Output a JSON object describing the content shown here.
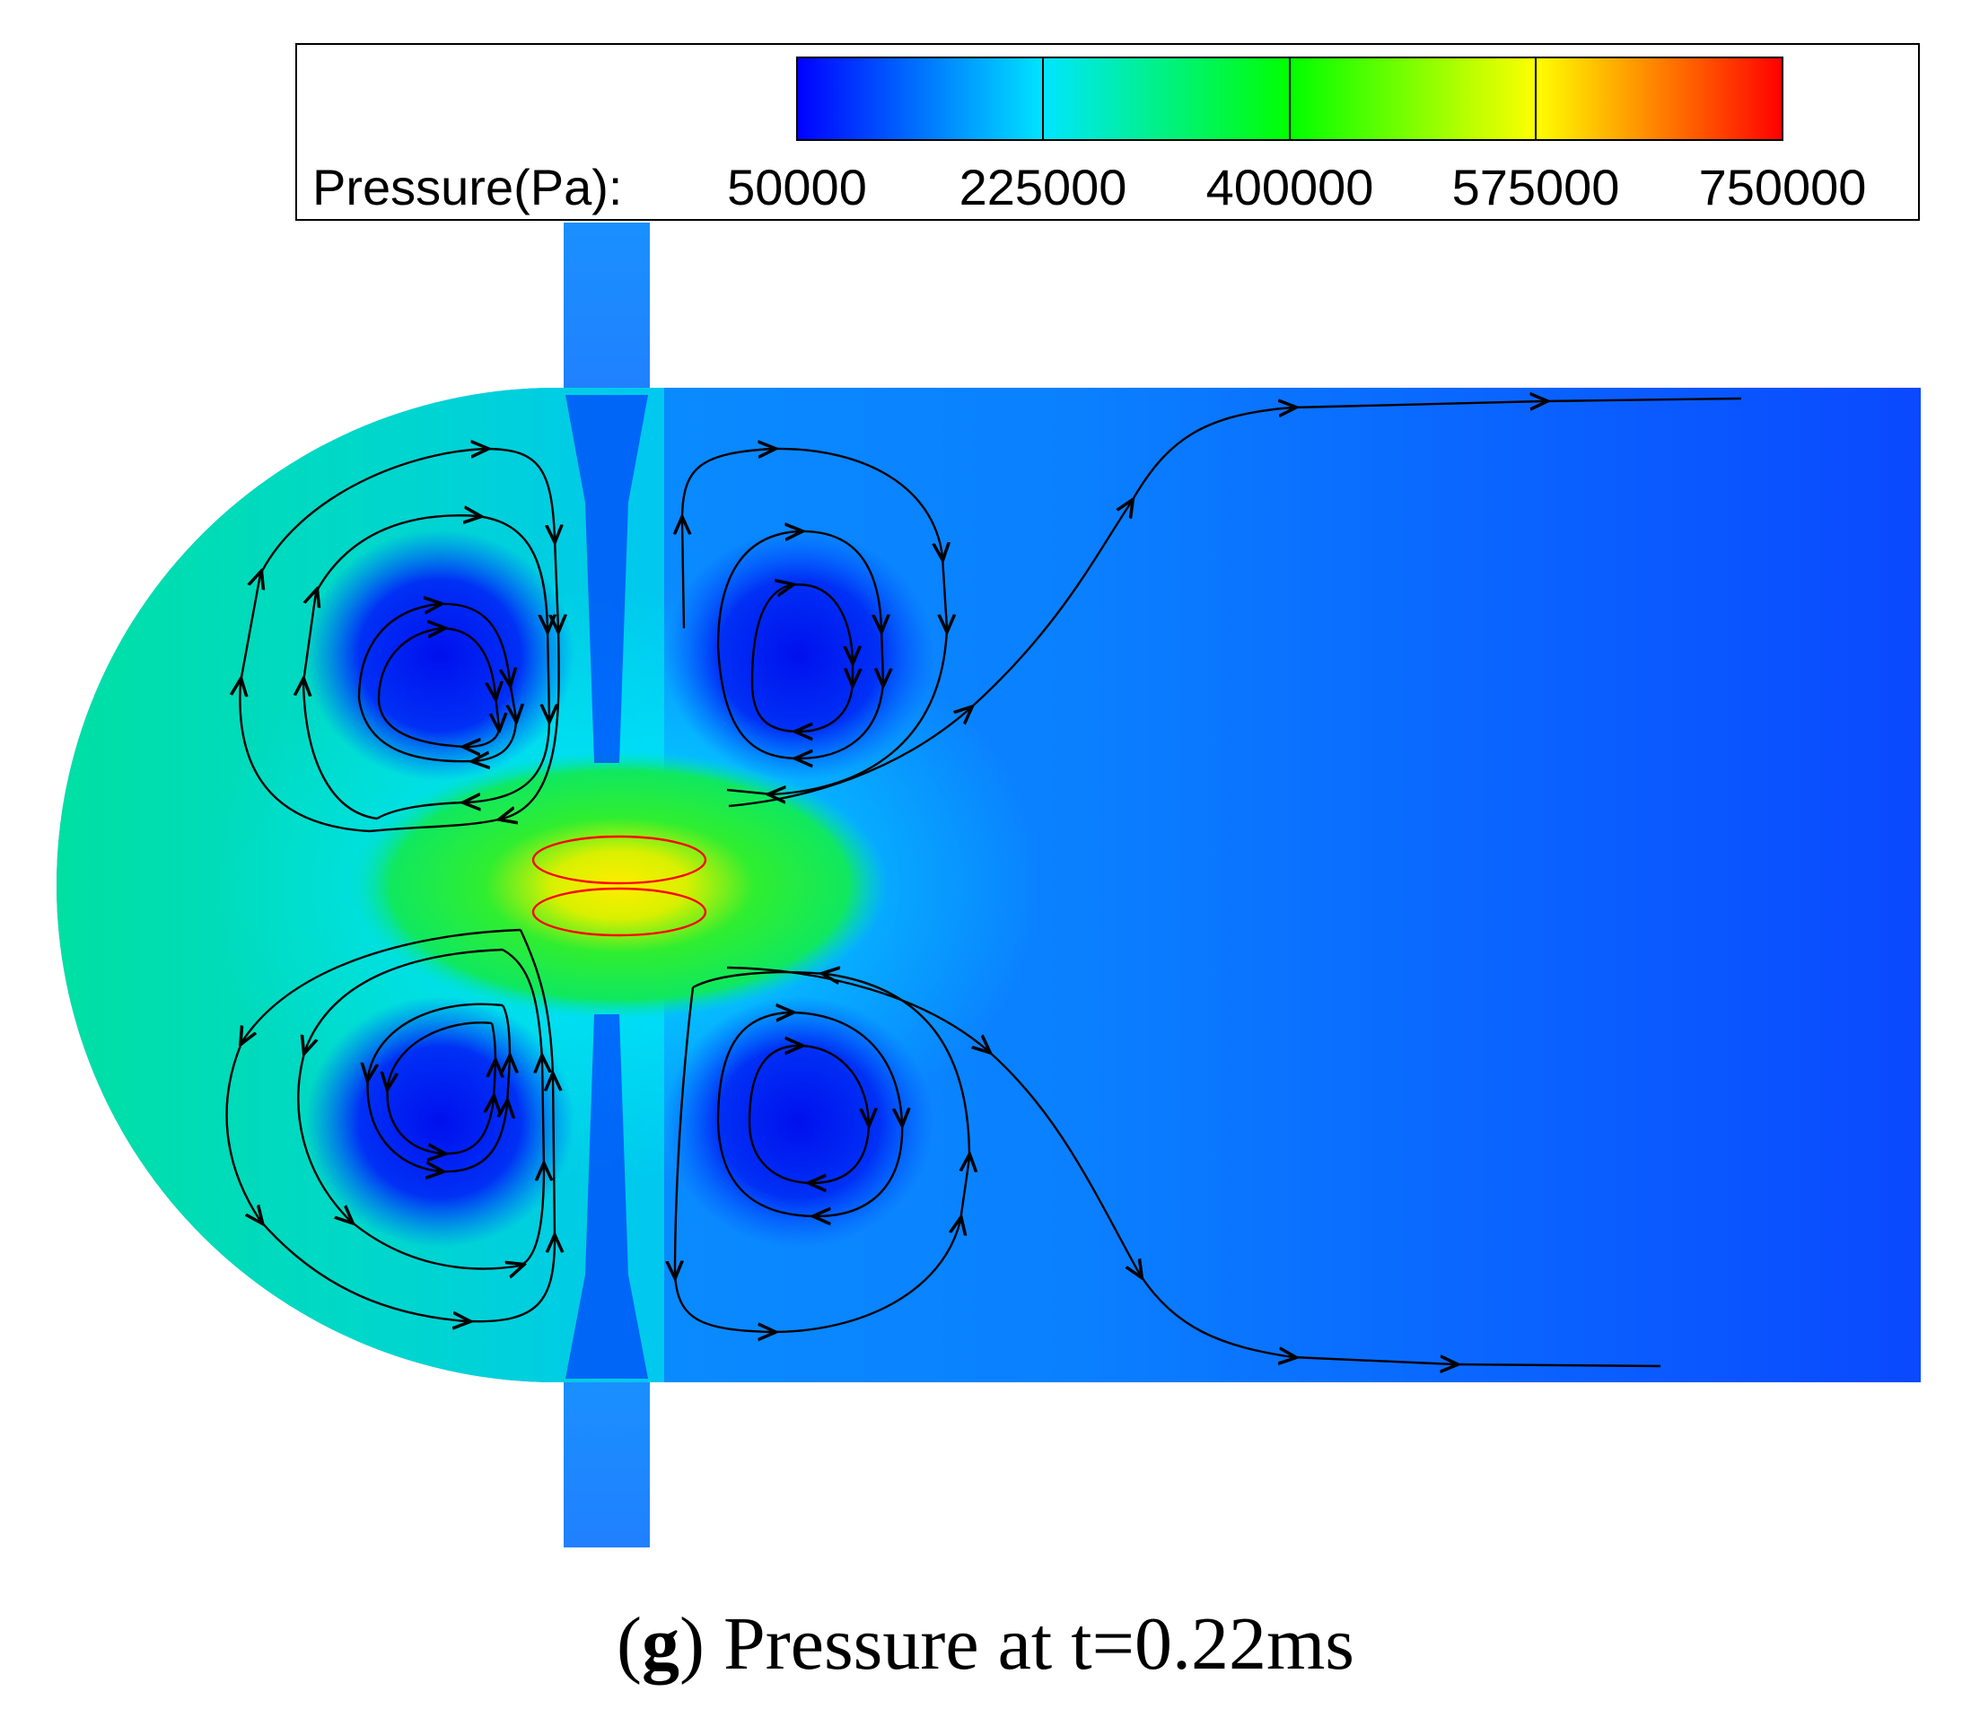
{
  "legend": {
    "label": "Pressure(Pa):",
    "ticks": [
      "50000",
      "225000",
      "400000",
      "575000",
      "750000"
    ],
    "colors": [
      "#0000ff",
      "#00e5ff",
      "#00ff00",
      "#ffff00",
      "#ff0000"
    ]
  },
  "field_colors": {
    "outlet_blue": "#0a4dff",
    "background_blue": "#0a8cff",
    "vortex_core": "#0010ee",
    "high_pressure_green": "#33ee33",
    "peak_yellow": "#ffee00",
    "nozzle_blue": "#1a90ff"
  },
  "streamline_color": "#000000",
  "bubble_outline_color": "#ff0000",
  "caption": {
    "open_paren": "(",
    "letter": "g",
    "close_paren": ")",
    "text": " Pressure at t=0.22ms"
  }
}
